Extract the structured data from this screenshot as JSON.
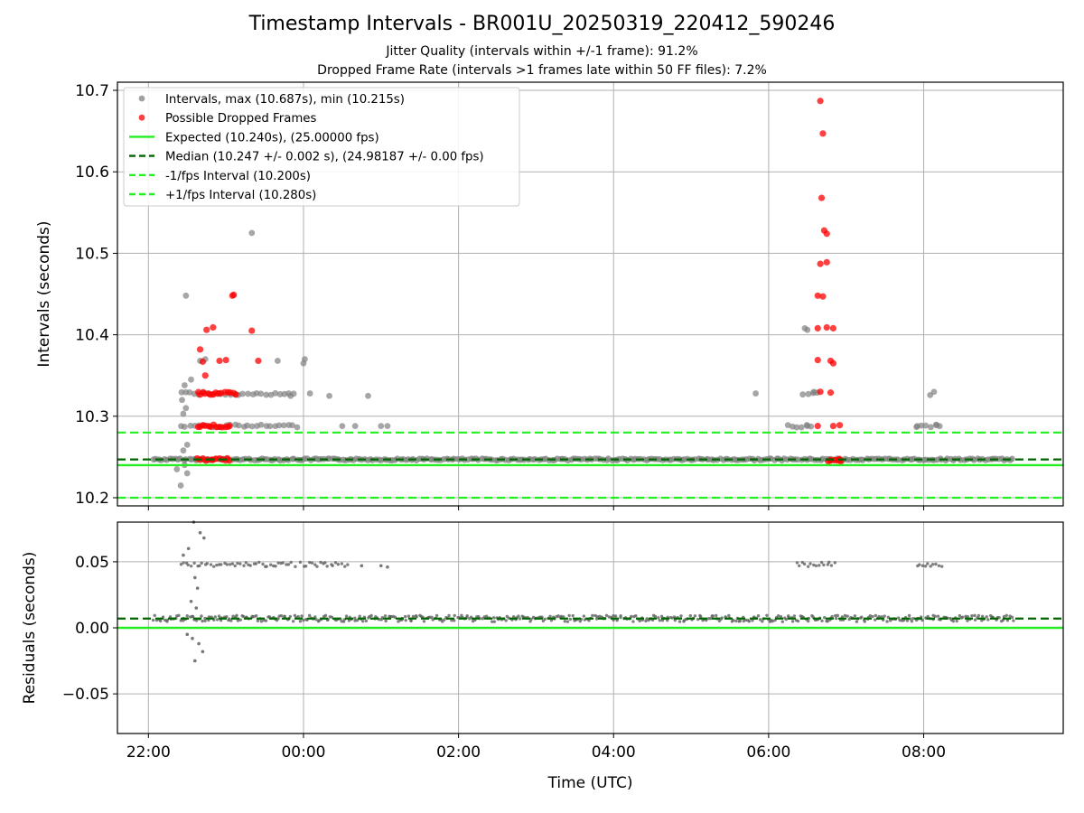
{
  "figure": {
    "title": "Timestamp Intervals - BR001U_20250319_220412_590246",
    "subtitle_1": "Jitter Quality (intervals within +/-1 frame): 91.2%",
    "subtitle_2": "Dropped Frame Rate (intervals >1 frames late within 50 FF files): 7.2%"
  },
  "colors": {
    "intervals": "#808080",
    "dropped": "#ff0000",
    "expected": "#22ee22",
    "median": "#006400",
    "bounds": "#22ee22",
    "residuals": "#606060",
    "grid": "#b0b0b0"
  },
  "chart_data": [
    {
      "type": "scatter",
      "xlabel": "",
      "ylabel": "Intervals (seconds)",
      "ylim": [
        10.19,
        10.71
      ],
      "yticks": [
        10.2,
        10.3,
        10.4,
        10.5,
        10.6,
        10.7
      ],
      "yticklabels": [
        "10.2",
        "10.3",
        "10.4",
        "10.5",
        "10.6",
        "10.7"
      ],
      "xlim_hours": [
        21.6,
        33.8
      ],
      "xticks_hours": [
        22,
        24,
        26,
        28,
        30,
        32
      ],
      "grid": true,
      "legend_position": "top-left",
      "legend": [
        {
          "label": "Intervals, max (10.687s), min (10.215s)",
          "kind": "dot",
          "color": "#808080"
        },
        {
          "label": "Possible Dropped Frames",
          "kind": "dot",
          "color": "#ff0000"
        },
        {
          "label": "Expected (10.240s), (25.00000 fps)",
          "kind": "solid",
          "color": "#22ee22"
        },
        {
          "label": "Median (10.247 +/- 0.002 s), (24.98187 +/- 0.00 fps)",
          "kind": "dashed",
          "color": "#006400"
        },
        {
          "label": "-1/fps Interval (10.200s)",
          "kind": "dashed",
          "color": "#22ee22"
        },
        {
          "label": "+1/fps Interval (10.280s)",
          "kind": "dashed",
          "color": "#22ee22"
        }
      ],
      "reference_lines": {
        "expected": 10.24,
        "median": 10.247,
        "minus_1_fps": 10.2,
        "plus_1_fps": 10.28
      },
      "series": [
        {
          "name": "Intervals, max (10.687s), min (10.215s)",
          "baseline_band": {
            "x_from": "22:04",
            "x_to": "09:10",
            "y": 10.247
          },
          "points": [
            [
              "22:25",
              10.215
            ],
            [
              "22:30",
              10.23
            ],
            [
              "22:28",
              10.24
            ],
            [
              "22:22",
              10.235
            ],
            [
              "22:27",
              10.258
            ],
            [
              "22:30",
              10.265
            ],
            [
              "22:27",
              10.303
            ],
            [
              "22:29",
              10.31
            ],
            [
              "22:26",
              10.32
            ],
            [
              "22:28",
              10.338
            ],
            [
              "22:33",
              10.345
            ],
            [
              "22:40",
              10.368
            ],
            [
              "22:44",
              10.37
            ],
            [
              "22:29",
              10.448
            ],
            [
              "23:20",
              10.525
            ],
            [
              "23:40",
              10.368
            ],
            [
              "23:50",
              10.325
            ],
            [
              "00:00",
              10.365
            ],
            [
              "00:01",
              10.37
            ],
            [
              "00:05",
              10.328
            ],
            [
              "00:20",
              10.325
            ],
            [
              "00:30",
              10.288
            ],
            [
              "00:40",
              10.288
            ],
            [
              "00:50",
              10.325
            ],
            [
              "01:00",
              10.288
            ],
            [
              "01:05",
              10.288
            ],
            [
              "05:50",
              10.328
            ],
            [
              "06:28",
              10.408
            ],
            [
              "06:30",
              10.406
            ],
            [
              "06:35",
              10.33
            ],
            [
              "06:30",
              10.288
            ],
            [
              "08:05",
              10.326
            ],
            [
              "08:08",
              10.33
            ],
            [
              "07:55",
              10.288
            ],
            [
              "08:10",
              10.289
            ]
          ]
        },
        {
          "name": "Possible Dropped Frames",
          "points": [
            [
              "22:40",
              10.382
            ],
            [
              "22:42",
              10.367
            ],
            [
              "22:44",
              10.35
            ],
            [
              "22:45",
              10.406
            ],
            [
              "22:50",
              10.409
            ],
            [
              "22:55",
              10.368
            ],
            [
              "23:00",
              10.369
            ],
            [
              "23:05",
              10.448
            ],
            [
              "23:06",
              10.449
            ],
            [
              "23:20",
              10.405
            ],
            [
              "23:25",
              10.368
            ],
            [
              "06:40",
              10.687
            ],
            [
              "06:42",
              10.647
            ],
            [
              "06:41",
              10.568
            ],
            [
              "06:43",
              10.528
            ],
            [
              "06:45",
              10.524
            ],
            [
              "06:40",
              10.487
            ],
            [
              "06:45",
              10.489
            ],
            [
              "06:38",
              10.448
            ],
            [
              "06:42",
              10.447
            ],
            [
              "06:38",
              10.408
            ],
            [
              "06:45",
              10.409
            ],
            [
              "06:50",
              10.408
            ],
            [
              "06:38",
              10.369
            ],
            [
              "06:48",
              10.368
            ],
            [
              "06:50",
              10.365
            ],
            [
              "06:40",
              10.33
            ],
            [
              "06:48",
              10.329
            ],
            [
              "06:38",
              10.288
            ],
            [
              "06:50",
              10.288
            ],
            [
              "06:55",
              10.289
            ],
            [
              "06:48",
              10.246
            ],
            [
              "06:55",
              10.246
            ]
          ]
        }
      ],
      "dropped_clusters": [
        {
          "x_from": "22:38",
          "x_to": "23:05",
          "y": 10.247
        },
        {
          "x_from": "22:38",
          "x_to": "23:05",
          "y": 10.288
        },
        {
          "x_from": "22:38",
          "x_to": "23:08",
          "y": 10.328
        },
        {
          "x_from": "06:46",
          "x_to": "06:58",
          "y": 10.246
        }
      ],
      "interval_clusters": [
        {
          "x_from": "22:25",
          "x_to": "23:10",
          "y": 10.328
        },
        {
          "x_from": "23:10",
          "x_to": "23:53",
          "y": 10.327
        },
        {
          "x_from": "22:25",
          "x_to": "23:10",
          "y": 10.288
        },
        {
          "x_from": "23:10",
          "x_to": "23:58",
          "y": 10.288
        },
        {
          "x_from": "06:15",
          "x_to": "06:35",
          "y": 10.288
        },
        {
          "x_from": "06:27",
          "x_to": "06:38",
          "y": 10.328
        },
        {
          "x_from": "07:55",
          "x_to": "08:13",
          "y": 10.288
        }
      ]
    },
    {
      "type": "scatter",
      "xlabel": "Time (UTC)",
      "ylabel": "Residuals (seconds)",
      "ylim": [
        -0.08,
        0.08
      ],
      "yticks": [
        -0.05,
        0.0,
        0.05
      ],
      "yticklabels": [
        "−0.05",
        "0.00",
        "0.05"
      ],
      "xlim_hours": [
        21.6,
        33.8
      ],
      "xticks_hours": [
        22,
        24,
        26,
        28,
        30,
        32
      ],
      "xticklabels": [
        "22:00",
        "00:00",
        "02:00",
        "04:00",
        "06:00",
        "08:00"
      ],
      "grid": true,
      "reference_lines": {
        "zero": 0.0,
        "median": 0.007
      },
      "series": [
        {
          "name": "Residuals",
          "baseline_band": {
            "x_from": "22:04",
            "x_to": "09:10",
            "y": 0.007
          },
          "clusters": [
            {
              "x_from": "22:25",
              "x_to": "23:55",
              "y": 0.048
            },
            {
              "x_from": "23:58",
              "x_to": "00:35",
              "y": 0.048
            },
            {
              "x_from": "06:22",
              "x_to": "06:52",
              "y": 0.048
            },
            {
              "x_from": "07:55",
              "x_to": "08:15",
              "y": 0.048
            }
          ],
          "points": [
            [
              "22:35",
              0.08
            ],
            [
              "22:40",
              0.072
            ],
            [
              "22:43",
              0.068
            ],
            [
              "22:31",
              0.06
            ],
            [
              "22:27",
              0.055
            ],
            [
              "22:36",
              0.038
            ],
            [
              "22:38",
              0.03
            ],
            [
              "22:33",
              0.02
            ],
            [
              "22:37",
              0.015
            ],
            [
              "22:30",
              -0.005
            ],
            [
              "22:34",
              -0.008
            ],
            [
              "22:39",
              -0.012
            ],
            [
              "22:42",
              -0.018
            ],
            [
              "22:36",
              -0.025
            ],
            [
              "00:45",
              0.047
            ],
            [
              "01:00",
              0.047
            ],
            [
              "01:05",
              0.046
            ]
          ]
        }
      ]
    }
  ]
}
